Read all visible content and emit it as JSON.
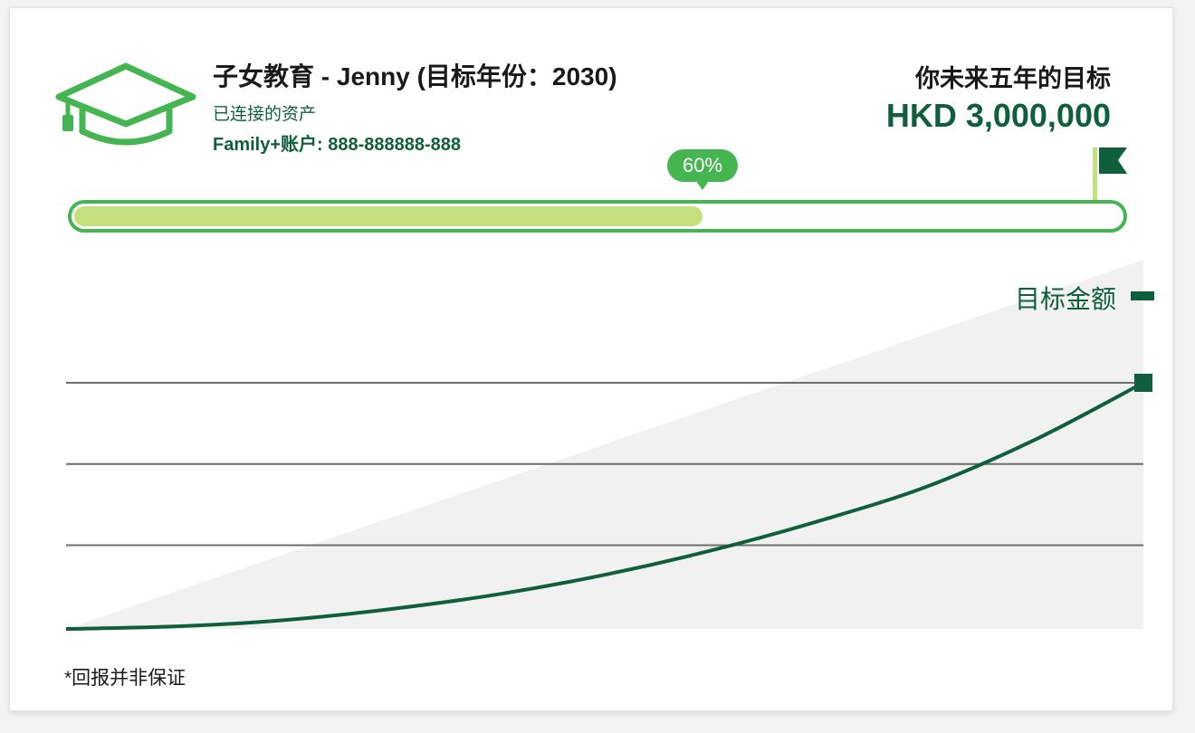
{
  "goal": {
    "title": "子女教育 - Jenny (目标年份：2030)",
    "linked_assets_label": "已连接的资产",
    "account": "Family+账户: 888-888888-888",
    "icon": "graduation-cap-icon"
  },
  "target": {
    "label": "你未来五年的目标",
    "amount": "HKD 3,000,000",
    "flag_icon": "flag-icon"
  },
  "progress": {
    "label": "60%",
    "value": 0.6
  },
  "chart": {
    "legend_label": "目标金额",
    "disclaimer": "*回报并非保证"
  },
  "colors": {
    "brand_dark_green": "#0f5f3f",
    "progress_green": "#45b552",
    "progress_fill": "#c6df7e",
    "flag_pole": "#c6df7e",
    "area_gray": "#f1f1f1",
    "gridline": "#6e6e6e"
  },
  "chart_data": {
    "type": "line",
    "title": "",
    "xlabel": "",
    "ylabel": "",
    "series": [
      {
        "name": "目标金额",
        "x": [
          0,
          0.1,
          0.2,
          0.3,
          0.4,
          0.5,
          0.6,
          0.7,
          0.8,
          0.9,
          1.0
        ],
        "values": [
          0,
          0.01,
          0.035,
          0.08,
          0.14,
          0.22,
          0.32,
          0.44,
          0.58,
          0.77,
          1.0
        ]
      }
    ],
    "band": {
      "name": "",
      "x": [
        0,
        1
      ],
      "lower": [
        0,
        0
      ],
      "upper": [
        0,
        1.5
      ]
    },
    "ylim": [
      0,
      1.5
    ],
    "gridlines_y": [
      0.34,
      0.67,
      1.0
    ],
    "grid": true,
    "legend": "top-right"
  }
}
